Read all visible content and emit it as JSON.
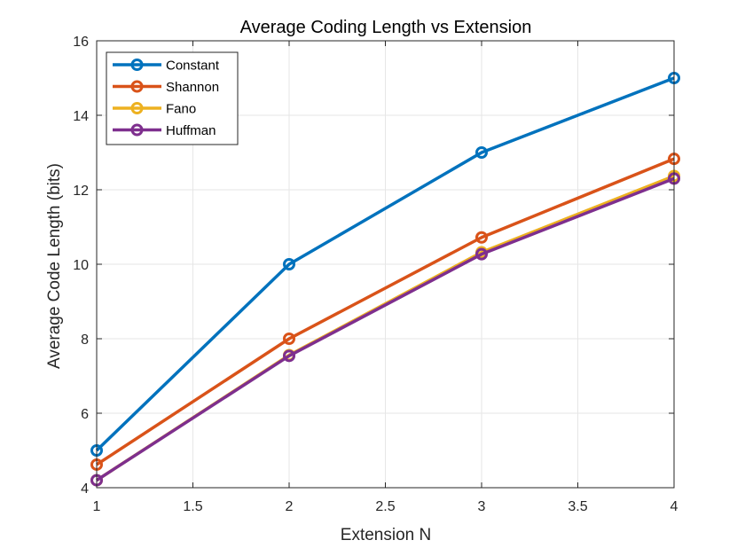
{
  "chart_data": {
    "type": "line",
    "title": "Average Coding Length vs Extension",
    "xlabel": "Extension N",
    "ylabel": "Average Code Length (bits)",
    "xlim": [
      1,
      4
    ],
    "ylim": [
      4,
      16
    ],
    "xticks": [
      1,
      1.5,
      2,
      2.5,
      3,
      3.5,
      4
    ],
    "yticks": [
      4,
      6,
      8,
      10,
      12,
      14,
      16
    ],
    "xtick_labels": [
      "1",
      "1.5",
      "2",
      "2.5",
      "3",
      "3.5",
      "4"
    ],
    "ytick_labels": [
      "4",
      "6",
      "8",
      "10",
      "12",
      "14",
      "16"
    ],
    "grid": true,
    "legend_position": "top-left",
    "x": [
      1,
      2,
      3,
      4
    ],
    "series": [
      {
        "name": "Constant",
        "color": "#0072BD",
        "values": [
          5.0,
          10.0,
          13.0,
          15.0
        ]
      },
      {
        "name": "Shannon",
        "color": "#D95319",
        "values": [
          4.62,
          8.0,
          10.72,
          12.83
        ]
      },
      {
        "name": "Fano",
        "color": "#EDB120",
        "values": [
          4.2,
          7.56,
          10.32,
          12.37
        ]
      },
      {
        "name": "Huffman",
        "color": "#7E2F8E",
        "values": [
          4.2,
          7.54,
          10.27,
          12.3
        ]
      }
    ]
  }
}
